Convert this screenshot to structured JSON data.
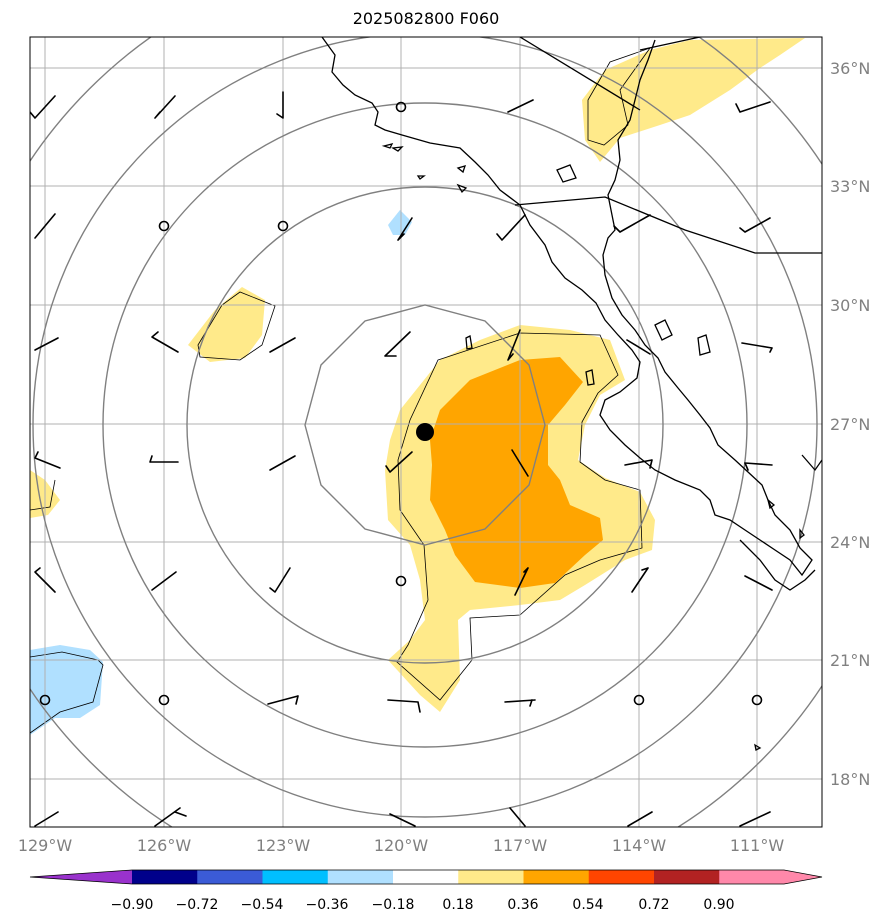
{
  "title": "2025082800 F060",
  "map": {
    "lon_ticks": [
      "129°W",
      "126°W",
      "123°W",
      "120°W",
      "117°W",
      "114°W",
      "111°W"
    ],
    "lat_ticks": [
      "36°N",
      "33°N",
      "30°N",
      "27°N",
      "24°N",
      "21°N",
      "18°N"
    ],
    "center_marker": "black dot near 27°N 119.4°W",
    "fill_colors": {
      "light_yellow": "#ffea8a",
      "orange": "#ffa500",
      "light_blue": "#b0e0ff"
    }
  },
  "colorbar": {
    "labels": [
      "−0.90",
      "−0.72",
      "−0.54",
      "−0.36",
      "−0.18",
      "0.18",
      "0.36",
      "0.54",
      "0.72",
      "0.90"
    ],
    "colors": [
      "#9932cc",
      "#00008b",
      "#3b5bd6",
      "#00bfff",
      "#b0e0ff",
      "#ffffff",
      "#ffea8a",
      "#ffa500",
      "#ff4500",
      "#b22222",
      "#ff88aa",
      "#ff88aa"
    ]
  }
}
